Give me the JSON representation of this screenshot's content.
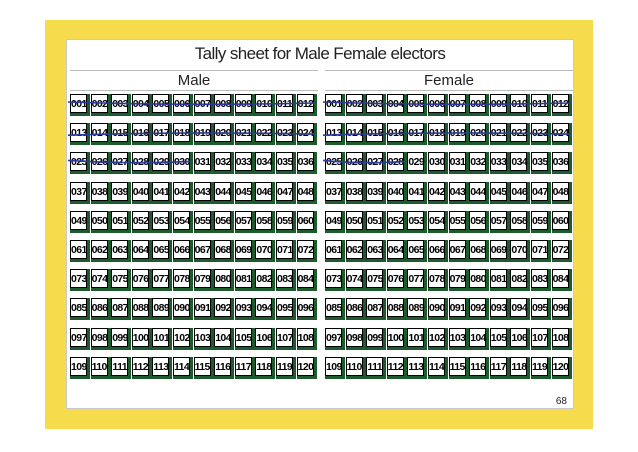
{
  "title": "Tally sheet for Male Female electors",
  "panels": [
    {
      "label": "Male"
    },
    {
      "label": "Female"
    }
  ],
  "numbers": [
    "001",
    "002",
    "003",
    "004",
    "005",
    "006",
    "007",
    "008",
    "009",
    "010",
    "011",
    "012",
    "013",
    "014",
    "015",
    "016",
    "017",
    "018",
    "019",
    "020",
    "021",
    "022",
    "023",
    "024",
    "025",
    "026",
    "027",
    "028",
    "029",
    "030",
    "031",
    "032",
    "033",
    "034",
    "035",
    "036",
    "037",
    "038",
    "039",
    "040",
    "041",
    "042",
    "043",
    "044",
    "045",
    "046",
    "047",
    "048",
    "049",
    "050",
    "051",
    "052",
    "053",
    "054",
    "055",
    "056",
    "057",
    "058",
    "059",
    "060",
    "061",
    "062",
    "063",
    "064",
    "065",
    "066",
    "067",
    "068",
    "069",
    "070",
    "071",
    "072",
    "073",
    "074",
    "075",
    "076",
    "077",
    "078",
    "079",
    "080",
    "081",
    "082",
    "083",
    "084",
    "085",
    "086",
    "087",
    "088",
    "089",
    "090",
    "091",
    "092",
    "093",
    "094",
    "095",
    "096",
    "097",
    "098",
    "099",
    "100",
    "101",
    "102",
    "103",
    "104",
    "105",
    "106",
    "107",
    "108",
    "109",
    "110",
    "111",
    "112",
    "113",
    "114",
    "115",
    "116",
    "117",
    "118",
    "119",
    "120"
  ],
  "tally": {
    "male_crossed_through": "030",
    "female_crossed_through": "028"
  },
  "colors": {
    "slide_background": "#f6dc4c",
    "cell_shadow": "#1d5a2c",
    "strike_ink": "#2b3a9c"
  },
  "page_number": "68"
}
